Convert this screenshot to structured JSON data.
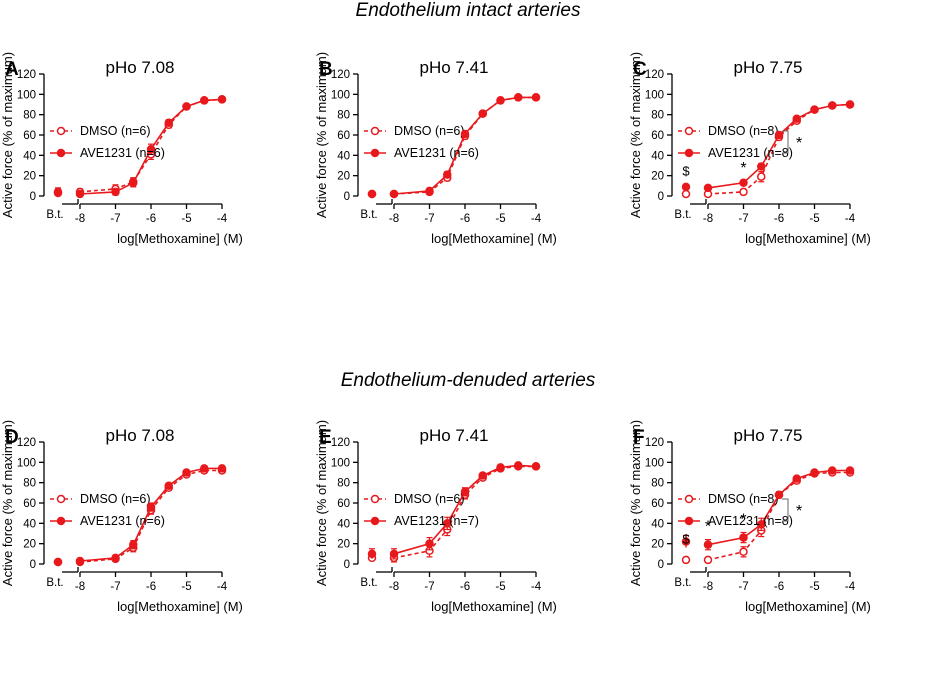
{
  "figure": {
    "top_title": "Endothelium intact arteries",
    "bottom_title": "Endothelium-denuded arteries"
  },
  "colors": {
    "series": "#e8191c",
    "axis": "#000000"
  },
  "chart_data": [
    {
      "type": "line",
      "panel": "A",
      "title": "pHo 7.08",
      "xlabel": "log[Methoxamine] (M)",
      "ylabel": "Active force (% of maximum)",
      "ylim": [
        0,
        120
      ],
      "yticks": [
        "0",
        "20",
        "40",
        "60",
        "80",
        "100",
        "120"
      ],
      "xlim": [
        -8,
        -4
      ],
      "xticks": [
        "-8",
        "-7",
        "-6",
        "-5",
        "-4"
      ],
      "baseline_label": "B.t.",
      "x": [
        -8,
        -7,
        -6.5,
        -6,
        -5.5,
        -5,
        -4.5,
        -4
      ],
      "series": [
        {
          "name": "DMSO (n=6)",
          "style": "open-dashed",
          "baseline": 4,
          "baseline_err": 4,
          "values": [
            4,
            7,
            14,
            41,
            70,
            88,
            94,
            95
          ],
          "errors": [
            3,
            4,
            4,
            5,
            3,
            2,
            1,
            1
          ]
        },
        {
          "name": "AVE1231 (n=6)",
          "style": "filled-solid",
          "baseline": 3,
          "baseline_err": 3,
          "values": [
            2,
            4,
            13,
            46,
            72,
            88,
            94,
            95
          ],
          "errors": [
            2,
            3,
            4,
            5,
            3,
            2,
            1,
            1
          ]
        }
      ],
      "significance": []
    },
    {
      "type": "line",
      "panel": "B",
      "title": "pHo 7.41",
      "xlabel": "log[Methoxamine] (M)",
      "ylabel": "Active force (% of maximum)",
      "ylim": [
        0,
        120
      ],
      "yticks": [
        "0",
        "20",
        "40",
        "60",
        "80",
        "100",
        "120"
      ],
      "xlim": [
        -8,
        -4
      ],
      "xticks": [
        "-8",
        "-7",
        "-6",
        "-5",
        "-4"
      ],
      "baseline_label": "B.t.",
      "x": [
        -8,
        -7,
        -6.5,
        -6,
        -5.5,
        -5,
        -4.5,
        -4
      ],
      "series": [
        {
          "name": "DMSO (n=6)",
          "style": "open-dashed",
          "baseline": 2,
          "baseline_err": 1,
          "values": [
            2,
            4,
            18,
            59,
            81,
            94,
            97,
            97
          ],
          "errors": [
            1,
            2,
            3,
            3,
            2,
            1,
            1,
            1
          ]
        },
        {
          "name": "AVE1231 (n=6)",
          "style": "filled-solid",
          "baseline": 2,
          "baseline_err": 1,
          "values": [
            2,
            5,
            21,
            61,
            81,
            94,
            97,
            97
          ],
          "errors": [
            1,
            2,
            3,
            3,
            2,
            1,
            1,
            1
          ]
        }
      ],
      "significance": []
    },
    {
      "type": "line",
      "panel": "C",
      "title": "pHo 7.75",
      "xlabel": "log[Methoxamine] (M)",
      "ylabel": "Active force (% of maximum)",
      "ylim": [
        0,
        120
      ],
      "yticks": [
        "0",
        "20",
        "40",
        "60",
        "80",
        "100",
        "120"
      ],
      "xlim": [
        -8,
        -4
      ],
      "xticks": [
        "-8",
        "-7",
        "-6",
        "-5",
        "-4"
      ],
      "baseline_label": "B.t.",
      "x": [
        -8,
        -7,
        -6.5,
        -6,
        -5.5,
        -5,
        -4.5,
        -4
      ],
      "series": [
        {
          "name": "DMSO (n=8)",
          "style": "open-dashed",
          "baseline": 2,
          "baseline_err": 1,
          "values": [
            2,
            4,
            19,
            58,
            74,
            85,
            89,
            90
          ],
          "errors": [
            1,
            2,
            5,
            3,
            2,
            1,
            1,
            1
          ]
        },
        {
          "name": "AVE1231 (n=8)",
          "style": "filled-solid",
          "baseline": 9,
          "baseline_err": 2,
          "values": [
            8,
            13,
            29,
            60,
            76,
            85,
            89,
            90
          ],
          "errors": [
            2,
            2,
            3,
            3,
            2,
            1,
            1,
            1
          ]
        }
      ],
      "significance": [
        {
          "x": "baseline",
          "label": "$"
        },
        {
          "x": -7,
          "label": "*"
        },
        {
          "x": "legend",
          "label": "*"
        }
      ]
    },
    {
      "type": "line",
      "panel": "D",
      "title": "pHo 7.08",
      "xlabel": "log[Methoxamine] (M)",
      "ylabel": "Active force (% of maximum)",
      "ylim": [
        0,
        120
      ],
      "yticks": [
        "0",
        "20",
        "40",
        "60",
        "80",
        "100",
        "120"
      ],
      "xlim": [
        -8,
        -4
      ],
      "xticks": [
        "-8",
        "-7",
        "-6",
        "-5",
        "-4"
      ],
      "baseline_label": "B.t.",
      "x": [
        -8,
        -7,
        -6.5,
        -6,
        -5.5,
        -5,
        -4.5,
        -4
      ],
      "series": [
        {
          "name": "DMSO (n=6)",
          "style": "open-dashed",
          "baseline": 2,
          "baseline_err": 1,
          "values": [
            2,
            5,
            16,
            53,
            75,
            88,
            92,
            92
          ],
          "errors": [
            1,
            2,
            4,
            4,
            2,
            2,
            2,
            2
          ]
        },
        {
          "name": "AVE1231 (n=6)",
          "style": "filled-solid",
          "baseline": 2,
          "baseline_err": 1,
          "values": [
            3,
            6,
            19,
            56,
            77,
            90,
            94,
            94
          ],
          "errors": [
            1,
            2,
            4,
            4,
            2,
            2,
            2,
            2
          ]
        }
      ],
      "significance": []
    },
    {
      "type": "line",
      "panel": "E",
      "title": "pHo 7.41",
      "xlabel": "log[Methoxamine] (M)",
      "ylabel": "Active force (% of maximum)",
      "ylim": [
        0,
        120
      ],
      "yticks": [
        "0",
        "20",
        "40",
        "60",
        "80",
        "100",
        "120"
      ],
      "xlim": [
        -8,
        -4
      ],
      "xticks": [
        "-8",
        "-7",
        "-6",
        "-5",
        "-4"
      ],
      "baseline_label": "B.t.",
      "x": [
        -8,
        -7,
        -6.5,
        -6,
        -5.5,
        -5,
        -4.5,
        -4
      ],
      "series": [
        {
          "name": "DMSO (n=6)",
          "style": "open-dashed",
          "baseline": 6,
          "baseline_err": 4,
          "values": [
            6,
            13,
            34,
            68,
            85,
            94,
            96,
            96
          ],
          "errors": [
            4,
            6,
            6,
            4,
            2,
            1,
            1,
            1
          ]
        },
        {
          "name": "AVE1231 (n=7)",
          "style": "filled-solid",
          "baseline": 10,
          "baseline_err": 5,
          "values": [
            10,
            20,
            40,
            71,
            87,
            95,
            97,
            96
          ],
          "errors": [
            5,
            6,
            6,
            4,
            2,
            1,
            1,
            1
          ]
        }
      ],
      "significance": []
    },
    {
      "type": "line",
      "panel": "F",
      "title": "pHo 7.75",
      "xlabel": "log[Methoxamine] (M)",
      "ylabel": "Active force (% of maximum)",
      "ylim": [
        0,
        120
      ],
      "yticks": [
        "0",
        "20",
        "40",
        "60",
        "80",
        "100",
        "120"
      ],
      "xlim": [
        -8,
        -4
      ],
      "xticks": [
        "-8",
        "-7",
        "-6",
        "-5",
        "-4"
      ],
      "baseline_label": "B.t.",
      "x": [
        -8,
        -7,
        -6.5,
        -6,
        -5.5,
        -5,
        -4.5,
        -4
      ],
      "series": [
        {
          "name": "DMSO (n=8)",
          "style": "open-dashed",
          "baseline": 4,
          "baseline_err": 1,
          "values": [
            4,
            12,
            33,
            68,
            82,
            89,
            90,
            90
          ],
          "errors": [
            1,
            5,
            6,
            3,
            2,
            1,
            1,
            1
          ]
        },
        {
          "name": "AVE1231 (n=8)",
          "style": "filled-solid",
          "baseline": 22,
          "baseline_err": 6,
          "values": [
            19,
            26,
            39,
            68,
            84,
            90,
            92,
            92
          ],
          "errors": [
            5,
            5,
            6,
            3,
            2,
            1,
            1,
            1
          ]
        }
      ],
      "significance": [
        {
          "x": "baseline",
          "label": "$"
        },
        {
          "x": -8,
          "label": "*"
        },
        {
          "x": -7,
          "label": "*"
        },
        {
          "x": "legend",
          "label": "*"
        }
      ]
    }
  ]
}
